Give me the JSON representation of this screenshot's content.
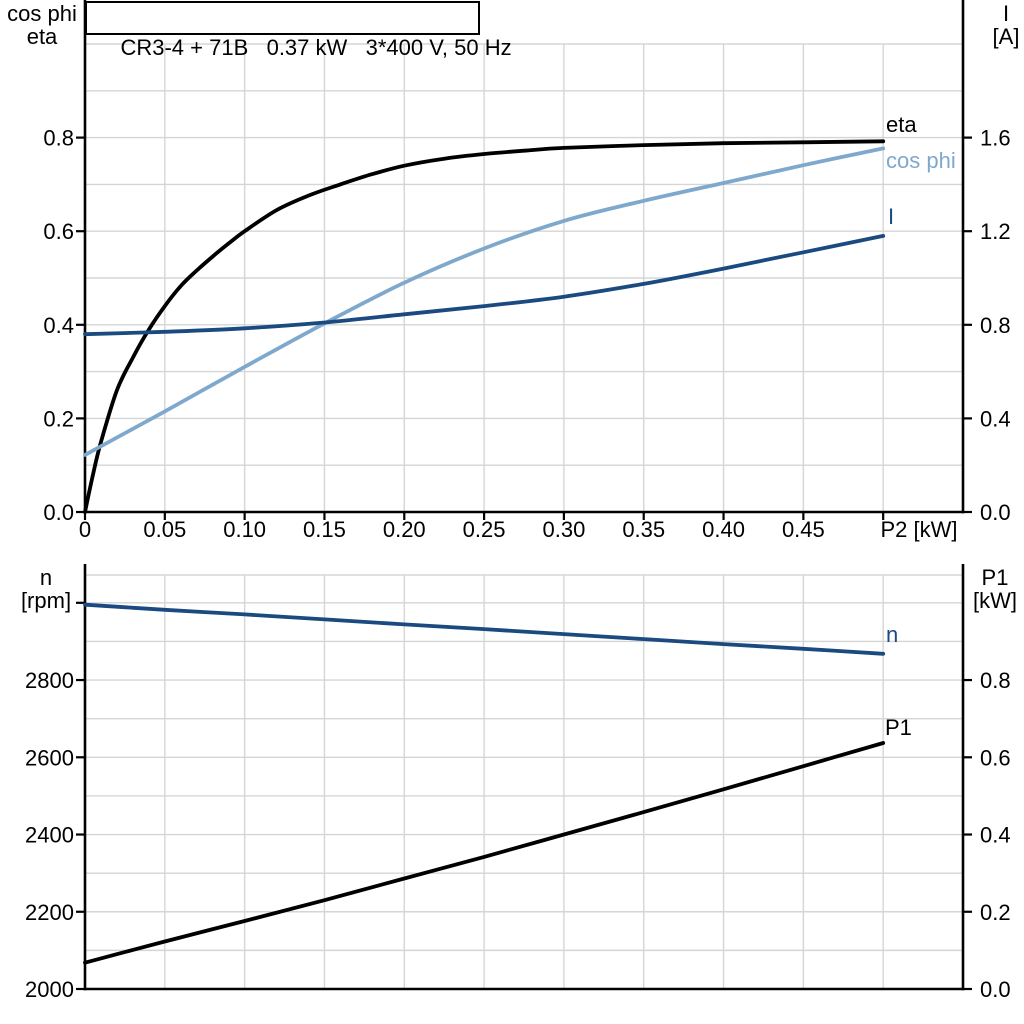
{
  "title_box": {
    "text": "CR3-4 + 71B   0.37 kW   3*400 V, 50 Hz"
  },
  "colors": {
    "background": "#ffffff",
    "axis": "#000000",
    "grid": "#d5d5d5",
    "curve_black": "#000000",
    "curve_dark_blue": "#1a4a80",
    "curve_light_blue": "#7fa8cd"
  },
  "chart_data": [
    {
      "type": "line",
      "title": "CR3-4 + 71B   0.37 kW   3*400 V, 50 Hz",
      "xlabel": "P2 [kW]",
      "ylabel_left": "cos phi / eta",
      "ylabel_left_lines": [
        "cos phi",
        "eta"
      ],
      "ylabel_right": "I [A]",
      "ylabel_right_lines": [
        "I",
        "[A]"
      ],
      "xlim": [
        0,
        0.55
      ],
      "ylim_left": [
        0,
        1.0
      ],
      "ylim_right": [
        0,
        2.0
      ],
      "grid": true,
      "legend_position": "right-of-curve-ends",
      "x_ticks": [
        0,
        0.05,
        0.1,
        0.15,
        0.2,
        0.25,
        0.3,
        0.35,
        0.4,
        0.45,
        0.5
      ],
      "x_tick_labels": [
        "0",
        "0.05",
        "0.10",
        "0.15",
        "0.20",
        "0.25",
        "0.30",
        "0.35",
        "0.40",
        "0.45",
        ""
      ],
      "y_left_ticks": [
        0,
        0.2,
        0.4,
        0.6,
        0.8
      ],
      "y_left_tick_labels": [
        "0.0",
        "0.2",
        "0.4",
        "0.6",
        "0.8"
      ],
      "y_right_ticks": [
        0,
        0.4,
        0.8,
        1.2,
        1.6
      ],
      "y_right_tick_labels": [
        "0.0",
        "0.4",
        "0.8",
        "1.2",
        "1.6"
      ],
      "grid_y_left": [
        0.1,
        0.2,
        0.3,
        0.4,
        0.5,
        0.6,
        0.7,
        0.8,
        0.9,
        1.0
      ],
      "series": [
        {
          "name": "eta",
          "axis": "left",
          "color": "#000000",
          "points": [
            [
              0,
              0
            ],
            [
              0.005,
              0.08
            ],
            [
              0.01,
              0.15
            ],
            [
              0.02,
              0.26
            ],
            [
              0.03,
              0.33
            ],
            [
              0.04,
              0.39
            ],
            [
              0.05,
              0.44
            ],
            [
              0.06,
              0.483
            ],
            [
              0.07,
              0.516
            ],
            [
              0.08,
              0.546
            ],
            [
              0.09,
              0.574
            ],
            [
              0.1,
              0.6
            ],
            [
              0.12,
              0.645
            ],
            [
              0.14,
              0.676
            ],
            [
              0.16,
              0.7
            ],
            [
              0.18,
              0.722
            ],
            [
              0.2,
              0.74
            ],
            [
              0.225,
              0.755
            ],
            [
              0.25,
              0.765
            ],
            [
              0.275,
              0.772
            ],
            [
              0.3,
              0.778
            ],
            [
              0.35,
              0.784
            ],
            [
              0.4,
              0.788
            ],
            [
              0.45,
              0.79
            ],
            [
              0.5,
              0.792
            ]
          ]
        },
        {
          "name": "cos phi",
          "axis": "left",
          "color": "#7fa8cd",
          "points": [
            [
              0,
              0.122
            ],
            [
              0.05,
              0.215
            ],
            [
              0.1,
              0.31
            ],
            [
              0.15,
              0.403
            ],
            [
              0.2,
              0.49
            ],
            [
              0.25,
              0.563
            ],
            [
              0.3,
              0.622
            ],
            [
              0.35,
              0.665
            ],
            [
              0.4,
              0.703
            ],
            [
              0.45,
              0.741
            ],
            [
              0.5,
              0.777
            ]
          ]
        },
        {
          "name": "I",
          "axis": "right",
          "color": "#1a4a80",
          "points": [
            [
              0,
              0.76
            ],
            [
              0.05,
              0.77
            ],
            [
              0.1,
              0.785
            ],
            [
              0.15,
              0.81
            ],
            [
              0.2,
              0.845
            ],
            [
              0.25,
              0.88
            ],
            [
              0.3,
              0.92
            ],
            [
              0.35,
              0.975
            ],
            [
              0.4,
              1.04
            ],
            [
              0.45,
              1.11
            ],
            [
              0.5,
              1.18
            ]
          ]
        }
      ]
    },
    {
      "type": "line",
      "title": "",
      "xlabel": "",
      "ylabel_left": "n [rpm]",
      "ylabel_left_lines": [
        "n",
        "[rpm]"
      ],
      "ylabel_right": "P1 [kW]",
      "ylabel_right_lines": [
        "P1",
        "[kW]"
      ],
      "xlim": [
        0,
        0.55
      ],
      "ylim_left": [
        2000,
        3072
      ],
      "ylim_right": [
        0,
        1.072
      ],
      "grid": true,
      "legend_position": "right-of-curve-ends",
      "x_ticks": [
        0,
        0.05,
        0.1,
        0.15,
        0.2,
        0.25,
        0.3,
        0.35,
        0.4,
        0.45,
        0.5
      ],
      "x_tick_labels": [
        "",
        "",
        "",
        "",
        "",
        "",
        "",
        "",
        "",
        "",
        ""
      ],
      "y_left_ticks": [
        2000,
        2200,
        2400,
        2600,
        2800,
        3000
      ],
      "y_left_tick_labels": [
        "2000",
        "2200",
        "2400",
        "2600",
        "2800",
        ""
      ],
      "y_right_ticks": [
        0,
        0.2,
        0.4,
        0.6,
        0.8
      ],
      "y_right_tick_labels": [
        "0.0",
        "0.2",
        "0.4",
        "0.6",
        "0.8"
      ],
      "grid_y_left": [
        2100,
        2200,
        2300,
        2400,
        2500,
        2600,
        2700,
        2800,
        2900,
        3000
      ],
      "series": [
        {
          "name": "n",
          "axis": "left",
          "color": "#1a4a80",
          "points": [
            [
              0,
              2995
            ],
            [
              0.05,
              2982
            ],
            [
              0.1,
              2970
            ],
            [
              0.15,
              2957
            ],
            [
              0.2,
              2944
            ],
            [
              0.25,
              2932
            ],
            [
              0.3,
              2919
            ],
            [
              0.35,
              2906
            ],
            [
              0.4,
              2893
            ],
            [
              0.45,
              2881
            ],
            [
              0.5,
              2868
            ]
          ]
        },
        {
          "name": "P1",
          "axis": "right",
          "color": "#000000",
          "points": [
            [
              0,
              0.068
            ],
            [
              0.05,
              0.123
            ],
            [
              0.1,
              0.176
            ],
            [
              0.15,
              0.23
            ],
            [
              0.2,
              0.286
            ],
            [
              0.25,
              0.342
            ],
            [
              0.3,
              0.4
            ],
            [
              0.35,
              0.458
            ],
            [
              0.4,
              0.517
            ],
            [
              0.45,
              0.577
            ],
            [
              0.5,
              0.637
            ]
          ]
        }
      ]
    }
  ]
}
